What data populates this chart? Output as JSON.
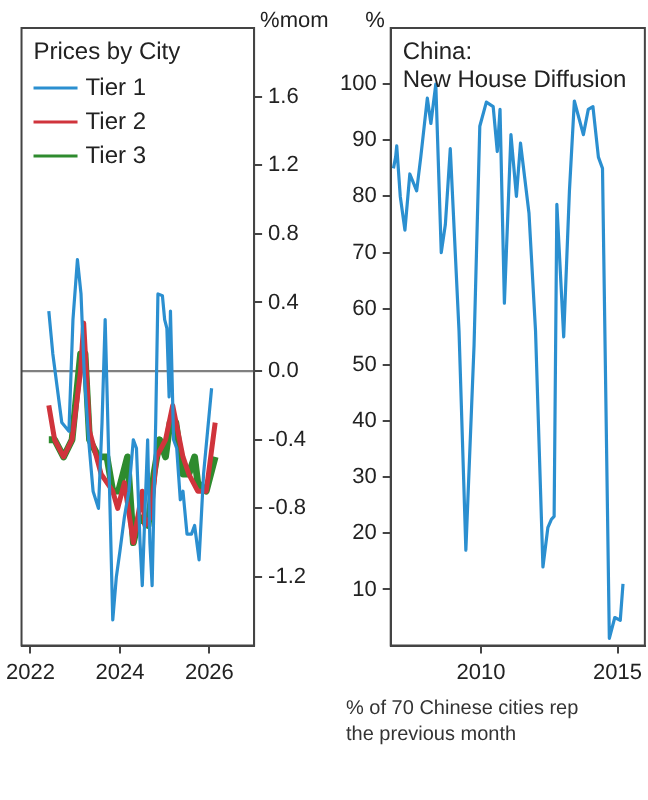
{
  "chart_data": [
    {
      "type": "line",
      "title": "Prices by City",
      "ylabel": "%mom",
      "xlim": [
        2021.8,
        2027.0
      ],
      "xticks": [
        2022,
        2024,
        2026
      ],
      "ylim": [
        -1.6,
        2.0
      ],
      "yticks": [
        {
          "value": -1.2,
          "label": "-1.2"
        },
        {
          "value": -0.8,
          "label": "-0.8"
        },
        {
          "value": -0.4,
          "label": "-0.4"
        },
        {
          "value": 0,
          "label": "0.0"
        },
        0.4,
        0.8,
        1.2,
        1.6
      ],
      "legend": "top left",
      "ref_lines": [
        {
          "axis": "y",
          "value": 0,
          "color": "#808080"
        }
      ],
      "series": [
        {
          "name": "Tier 1",
          "color": "#2b8fd0",
          "x": [
            2022.41,
            2022.5,
            2022.6,
            2022.7,
            2022.86,
            2022.95,
            2023.05,
            2023.13,
            2023.2,
            2023.3,
            2023.4,
            2023.52,
            2023.6,
            2023.67,
            2023.75,
            2023.84,
            2023.92,
            2024.0,
            2024.1,
            2024.2,
            2024.3,
            2024.37,
            2024.45,
            2024.5,
            2024.57,
            2024.62,
            2024.67,
            2024.72,
            2024.8,
            2024.85,
            2024.95,
            2025.0,
            2025.05,
            2025.1,
            2025.13,
            2025.2,
            2025.27,
            2025.35,
            2025.41,
            2025.5,
            2025.6,
            2025.67,
            2025.77,
            2025.87,
            2026.05
          ],
          "values": [
            0.35,
            0.1,
            -0.1,
            -0.3,
            -0.35,
            0.3,
            0.65,
            0.45,
            0.0,
            -0.4,
            -0.7,
            -0.8,
            -0.3,
            0.3,
            -0.5,
            -1.45,
            -1.2,
            -1.05,
            -0.85,
            -0.7,
            -0.4,
            -0.45,
            -1.0,
            -1.25,
            -0.75,
            -0.4,
            -1.0,
            -1.25,
            -0.3,
            0.45,
            0.44,
            0.3,
            0.25,
            -0.15,
            0.35,
            -0.4,
            -0.45,
            -0.75,
            -0.7,
            -0.95,
            -0.95,
            -0.9,
            -1.1,
            -0.6,
            -0.1
          ]
        },
        {
          "name": "Tier 2",
          "color": "#d0343c",
          "x": [
            2022.41,
            2022.54,
            2022.74,
            2022.93,
            2023.12,
            2023.19,
            2023.32,
            2023.58,
            2023.84,
            2023.95,
            2024.1,
            2024.3,
            2024.5,
            2024.56,
            2024.69,
            2024.82,
            2025.02,
            2025.18,
            2025.41,
            2025.54,
            2025.74,
            2025.93,
            2026.13
          ],
          "values": [
            -0.2,
            -0.4,
            -0.5,
            -0.4,
            0.0,
            0.28,
            -0.35,
            -0.6,
            -0.7,
            -0.8,
            -0.65,
            -1.0,
            -0.7,
            -0.9,
            -0.85,
            -0.5,
            -0.4,
            -0.2,
            -0.5,
            -0.6,
            -0.7,
            -0.7,
            -0.3
          ]
        },
        {
          "name": "Tier 3",
          "color": "#2e8b2e",
          "x": [
            2022.41,
            2022.54,
            2022.74,
            2022.93,
            2023.12,
            2023.22,
            2023.32,
            2023.52,
            2023.71,
            2023.84,
            2023.97,
            2024.17,
            2024.3,
            2024.43,
            2024.63,
            2024.76,
            2024.89,
            2025.02,
            2025.12,
            2025.25,
            2025.41,
            2025.54,
            2025.67,
            2025.74,
            2025.93,
            2026.13
          ],
          "values": [
            -0.4,
            -0.4,
            -0.5,
            -0.4,
            0.1,
            0.1,
            -0.4,
            -0.5,
            -0.5,
            -0.7,
            -0.7,
            -0.5,
            -1.0,
            -0.85,
            -0.9,
            -0.6,
            -0.4,
            -0.5,
            -0.3,
            -0.3,
            -0.6,
            -0.6,
            -0.5,
            -0.65,
            -0.7,
            -0.5
          ]
        }
      ]
    },
    {
      "type": "line",
      "title": "China:\nNew House Diffusion",
      "ylabel": "%",
      "annotations": [
        "% of 70 Chinese cities rep\nthe previous month"
      ],
      "xlim": [
        2006.7,
        2016.0
      ],
      "xticks": [
        2010,
        2015
      ],
      "ylim": [
        0,
        110
      ],
      "yticks": [
        10,
        20,
        30,
        40,
        50,
        60,
        70,
        80,
        90,
        100
      ],
      "legend": false,
      "series": [
        {
          "color": "#2b8fd0",
          "x": [
            2006.8,
            2006.88,
            2006.92,
            2007.05,
            2007.22,
            2007.4,
            2007.65,
            2007.8,
            2008.04,
            2008.17,
            2008.35,
            2008.55,
            2008.7,
            2008.88,
            2009.2,
            2009.45,
            2009.75,
            2009.96,
            2010.2,
            2010.45,
            2010.6,
            2010.7,
            2010.86,
            2011.1,
            2011.3,
            2011.45,
            2011.76,
            2012.0,
            2012.27,
            2012.45,
            2012.58,
            2012.68,
            2012.78,
            2013.03,
            2013.24,
            2013.42,
            2013.75,
            2013.93,
            2014.1,
            2014.3,
            2014.45,
            2014.7,
            2014.9,
            2015.1,
            2015.2
          ],
          "values": [
            85,
            87,
            89,
            80,
            74,
            84,
            81,
            87,
            97.5,
            93,
            100,
            70,
            75,
            88.5,
            56,
            17,
            53.5,
            92.5,
            96.8,
            96,
            88,
            95.5,
            61,
            91,
            80,
            89.5,
            77,
            56,
            14,
            21,
            22.5,
            23,
            78.6,
            55,
            81,
            97,
            91,
            95.5,
            96,
            87,
            85,
            1.3,
            5,
            4.5,
            11
          ]
        }
      ]
    }
  ]
}
